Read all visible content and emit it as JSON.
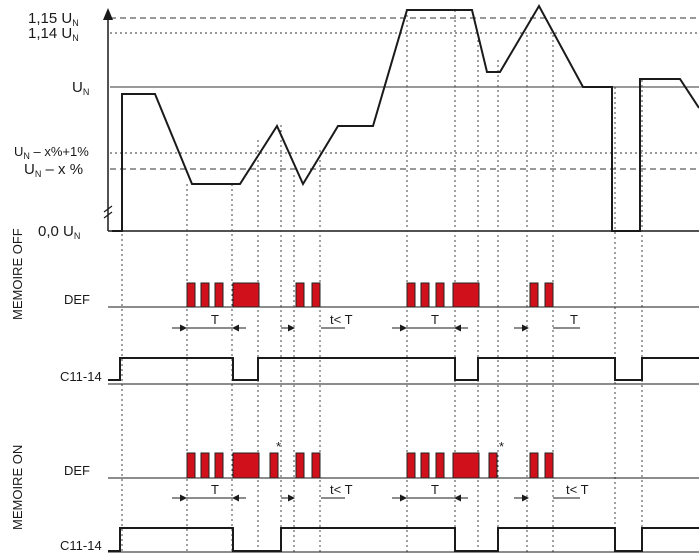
{
  "voltage_axis": {
    "label_115": "1,15 U",
    "label_114": "1,14 U",
    "label_un": "U",
    "label_un_x1": "U",
    "label_un_x1_suffix": " – x%+1%",
    "label_un_x": "U",
    "label_un_x_suffix": " – x %",
    "label_zero": "0,0 U",
    "subscript": "N"
  },
  "sections": {
    "memoire_off": "MEMOIRE OFF",
    "memoire_on": "MEMOIRE ON"
  },
  "rows": {
    "def": "DEF",
    "relay": "C11-14"
  },
  "timing": {
    "t_label": "T",
    "t_less_label": "t< T",
    "asterisk": "*"
  },
  "colors": {
    "pulse_fill": "#d0111b",
    "pulse_stroke": "#222222",
    "line": "#1a1a1a",
    "dashed": "#333333"
  }
}
